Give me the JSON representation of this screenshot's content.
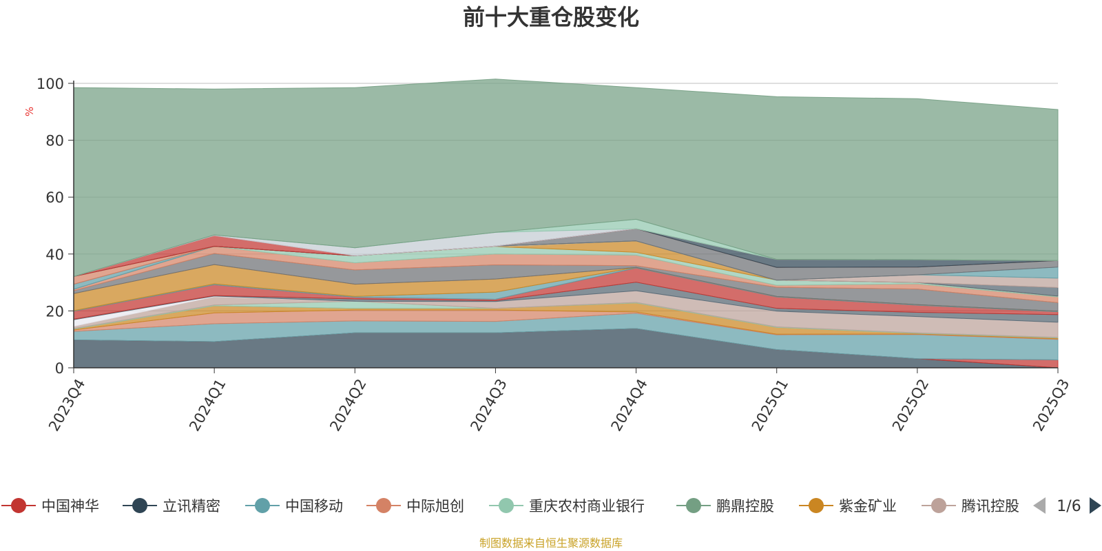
{
  "chart_data": {
    "type": "area",
    "title": "前十大重仓股变化",
    "ylabel": "%",
    "ylim": [
      0,
      100
    ],
    "yticks": [
      0,
      20,
      40,
      60,
      80,
      100
    ],
    "categories": [
      "2023Q4",
      "2024Q1",
      "2024Q2",
      "2024Q3",
      "2024Q4",
      "2025Q1",
      "2025Q2",
      "2025Q3"
    ],
    "source": "制图数据来自恒生聚源数据库",
    "legend_page": "1/6",
    "legend": [
      {
        "name": "中国神华",
        "color": "#c23531"
      },
      {
        "name": "立讯精密",
        "color": "#2f4554"
      },
      {
        "name": "中国移动",
        "color": "#61a0a8"
      },
      {
        "name": "中际旭创",
        "color": "#d48265"
      },
      {
        "name": "重庆农村商业银行",
        "color": "#91c7ae"
      },
      {
        "name": "鹏鼎控股",
        "color": "#749f83"
      },
      {
        "name": "紫金矿业",
        "color": "#ca8622"
      },
      {
        "name": "腾讯控股",
        "color": "#bda29a"
      }
    ],
    "series": [
      {
        "name": "s01",
        "color": "#2f4554",
        "values": [
          9.8,
          9.2,
          12.3,
          12.3,
          13.8,
          6.4,
          3.2,
          0.0
        ]
      },
      {
        "name": "s02",
        "color": "#c23531",
        "values": [
          0,
          0,
          0,
          0,
          0,
          0,
          0,
          2.8
        ]
      },
      {
        "name": "s03",
        "color": "#61a0a8",
        "values": [
          3.0,
          6.3,
          4.2,
          4.0,
          5.4,
          5.2,
          8.5,
          7.2
        ]
      },
      {
        "name": "s04",
        "color": "#d48265",
        "values": [
          0.5,
          3.8,
          3.8,
          4.0,
          0.4,
          0.2,
          0.2,
          0.2
        ]
      },
      {
        "name": "s05",
        "color": "#ca8622",
        "values": [
          0.3,
          2.5,
          0.6,
          0.6,
          3.2,
          2.4,
          0.2,
          0.3
        ]
      },
      {
        "name": "s06",
        "color": "#91c7ae",
        "values": [
          0.2,
          0.3,
          2.5,
          0.0,
          0.2,
          0.2,
          0.2,
          0.2
        ]
      },
      {
        "name": "s07",
        "color": "#bda29a",
        "values": [
          0.8,
          2.9,
          0.0,
          2.4,
          4.1,
          5.5,
          5.7,
          5.3
        ]
      },
      {
        "name": "s08",
        "color": "#e8e8ee",
        "values": [
          2.3,
          0.2,
          0.0,
          0.0,
          0.0,
          0.0,
          0.0,
          0.0
        ]
      },
      {
        "name": "s09",
        "color": "#546570",
        "values": [
          0.2,
          0.2,
          0.8,
          0.3,
          3.0,
          1.0,
          1.5,
          2.7
        ]
      },
      {
        "name": "s10",
        "color": "#c23531",
        "values": [
          2.8,
          3.8,
          0.6,
          0.5,
          5.0,
          4.0,
          2.5,
          1.0
        ]
      },
      {
        "name": "s11",
        "color": "#61a0a8",
        "values": [
          0.2,
          0.3,
          0.3,
          2.5,
          0.2,
          0.2,
          0.2,
          0.2
        ]
      },
      {
        "name": "s12",
        "color": "#ca8622",
        "values": [
          6.0,
          6.8,
          4.3,
          4.6,
          0.0,
          0.0,
          0.0,
          0.0
        ]
      },
      {
        "name": "s13",
        "color": "#6e7074",
        "values": [
          1.0,
          3.9,
          5.0,
          5.0,
          0.6,
          3.2,
          5.5,
          3.0
        ]
      },
      {
        "name": "s14",
        "color": "#d48265",
        "values": [
          0.5,
          2.5,
          2.5,
          3.8,
          3.7,
          0.7,
          1.8,
          2.0
        ]
      },
      {
        "name": "s15",
        "color": "#91c7ae",
        "values": [
          0.0,
          0.0,
          2.5,
          2.6,
          1.0,
          1.8,
          0.5,
          0.3
        ]
      },
      {
        "name": "s16",
        "color": "#ca8622",
        "values": [
          0.0,
          0.0,
          0.0,
          0.0,
          4.0,
          0.0,
          0.0,
          0.0
        ]
      },
      {
        "name": "s17",
        "color": "#c4ccd3",
        "values": [
          0.0,
          0.0,
          0.0,
          0.2,
          0.0,
          0.0,
          0.0,
          0.0
        ]
      },
      {
        "name": "s18",
        "color": "#546570",
        "values": [
          0.0,
          0.0,
          0.0,
          0.0,
          0.0,
          0.0,
          0.0,
          3.0
        ]
      },
      {
        "name": "s19",
        "color": "#bda29a",
        "values": [
          0.0,
          0.0,
          0.0,
          0.0,
          0.0,
          0.0,
          2.7,
          3.3
        ]
      },
      {
        "name": "s20",
        "color": "#61a0a8",
        "values": [
          1.8,
          0.0,
          0.0,
          0.0,
          0.0,
          0.0,
          0.0,
          3.9
        ]
      },
      {
        "name": "s21",
        "color": "#6e7074",
        "values": [
          0.0,
          0.0,
          0.0,
          0.0,
          4.3,
          4.5,
          2.7,
          2.3
        ]
      },
      {
        "name": "s22",
        "color": "#d48265",
        "values": [
          2.7,
          0.0,
          0.0,
          0.0,
          0.0,
          0.0,
          0.0,
          0.0
        ]
      },
      {
        "name": "s23",
        "color": "#2f4554",
        "values": [
          0.0,
          0.0,
          0.0,
          0.0,
          0.0,
          2.8,
          2.6,
          0.0
        ]
      },
      {
        "name": "s24",
        "color": "#c23531",
        "values": [
          0.0,
          3.8,
          0.0,
          0.0,
          0.0,
          0.0,
          0.0,
          0.0
        ]
      },
      {
        "name": "s25",
        "color": "#c4ccd3",
        "values": [
          0.0,
          0.2,
          2.8,
          4.8,
          0.0,
          0.0,
          0.0,
          0.0
        ]
      },
      {
        "name": "s26",
        "color": "#91c7ae",
        "values": [
          0.0,
          0.0,
          0.0,
          0.0,
          3.3,
          0.0,
          0.0,
          0.0
        ]
      },
      {
        "name": "s27",
        "color": "#749f83",
        "values": [
          66.4,
          51.3,
          56.3,
          53.9,
          46.3,
          57.2,
          56.6,
          53.1
        ]
      }
    ]
  }
}
